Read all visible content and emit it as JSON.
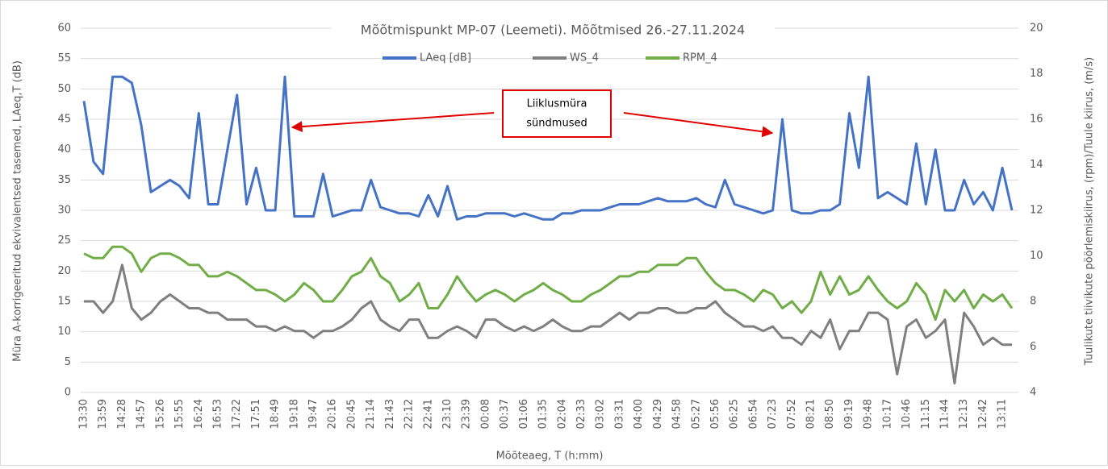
{
  "chart_data": {
    "type": "line",
    "title": "Mõõtmispunkt MP-07 (Leemeti). Mõõtmised 26.-27.11.2024",
    "x_label": "Mõõteaeg, T (h:mm)",
    "y_label": "Müra A-korrigeeritud ekvivalentsed tasemed, LAeq,T (dB)",
    "y2_label": "Tuulikute tiivikute pöörlemiskiirus, (rpm)/Tuule kiirus, (m/s)",
    "annotation": {
      "lines": [
        "Liiklusmüra",
        "sündmused"
      ]
    },
    "legend": "top",
    "grid": true,
    "ylim": [
      0,
      60
    ],
    "yticks": [
      0,
      5,
      10,
      15,
      20,
      25,
      30,
      35,
      40,
      45,
      50,
      55,
      60
    ],
    "y2lim": [
      4,
      20
    ],
    "y2ticks": [
      4,
      6,
      8,
      10,
      12,
      14,
      16,
      18,
      20
    ],
    "categories": [
      "13:30",
      null,
      "13:59",
      null,
      "14:28",
      null,
      "14:57",
      null,
      "15:26",
      null,
      "15:55",
      null,
      "16:24",
      null,
      "16:53",
      null,
      "17:22",
      null,
      "17:51",
      null,
      "18:49",
      null,
      "19:18",
      null,
      "19:47",
      null,
      "20:16",
      null,
      "20:45",
      null,
      "21:14",
      null,
      "21:43",
      null,
      "22:12",
      null,
      "22:41",
      null,
      "23:10",
      null,
      "23:39",
      null,
      "00:08",
      null,
      "00:37",
      null,
      "01:06",
      null,
      "01:35",
      null,
      "02:04",
      null,
      "02:33",
      null,
      "03:02",
      null,
      "03:31",
      null,
      "04:00",
      null,
      "04:29",
      null,
      "04:58",
      null,
      "05:27",
      null,
      "05:56",
      null,
      "06:25",
      null,
      "06:54",
      null,
      "07:23",
      null,
      "07:52",
      null,
      "08:21",
      null,
      "08:50",
      null,
      "09:19",
      null,
      "09:48",
      null,
      "10:17",
      null,
      "10:46",
      null,
      "11:15",
      null,
      "11:44",
      null,
      "12:13",
      null,
      "12:42",
      null,
      "13:11",
      null
    ],
    "series": [
      {
        "name": "LAeq [dB]",
        "color": "#4472c4",
        "axis": "y",
        "values": [
          48,
          38,
          36,
          52,
          52,
          51,
          44,
          33,
          34,
          35,
          34,
          32,
          46,
          31,
          31,
          40,
          49,
          31,
          37,
          30,
          30,
          52,
          29,
          29,
          29,
          36,
          29,
          29.5,
          30,
          30,
          35,
          30.5,
          30,
          29.5,
          29.5,
          29,
          32.5,
          29,
          34,
          28.5,
          29,
          29,
          29.5,
          29.5,
          29.5,
          29,
          29.5,
          29,
          28.5,
          28.5,
          29.5,
          29.5,
          30,
          30,
          30,
          30.5,
          31,
          31,
          31,
          31.5,
          32,
          31.5,
          31.5,
          31.5,
          32,
          31,
          30.5,
          35,
          31,
          30.5,
          30,
          29.5,
          30,
          45,
          30,
          29.5,
          29.5,
          30,
          30,
          31,
          46,
          37,
          52,
          32,
          33,
          32,
          31,
          41,
          31,
          40,
          30,
          30,
          35,
          31,
          33,
          30,
          37,
          30
        ]
      },
      {
        "name": "WS_4",
        "color": "#7f7f7f",
        "axis": "y2",
        "values": [
          8,
          8,
          7.5,
          8,
          9.6,
          7.7,
          7.2,
          7.5,
          8,
          8.3,
          8,
          7.7,
          7.7,
          7.5,
          7.5,
          7.2,
          7.2,
          7.2,
          6.9,
          6.9,
          6.7,
          6.9,
          6.7,
          6.7,
          6.4,
          6.7,
          6.7,
          6.9,
          7.2,
          7.7,
          8,
          7.2,
          6.9,
          6.7,
          7.2,
          7.2,
          6.4,
          6.4,
          6.7,
          6.9,
          6.7,
          6.4,
          7.2,
          7.2,
          6.9,
          6.7,
          6.9,
          6.7,
          6.9,
          7.2,
          6.9,
          6.7,
          6.7,
          6.9,
          6.9,
          7.2,
          7.5,
          7.2,
          7.5,
          7.5,
          7.7,
          7.7,
          7.5,
          7.5,
          7.7,
          7.7,
          8,
          7.5,
          7.2,
          6.9,
          6.9,
          6.7,
          6.9,
          6.4,
          6.4,
          6.1,
          6.7,
          6.4,
          7.2,
          5.9,
          6.7,
          6.7,
          7.5,
          7.5,
          7.2,
          4.8,
          6.9,
          7.2,
          6.4,
          6.7,
          7.2,
          4.4,
          7.5,
          6.9,
          6.1,
          6.4,
          6.1,
          6.1
        ]
      },
      {
        "name": "RPM_4",
        "color": "#70ad47",
        "axis": "y2",
        "values": [
          10.1,
          9.9,
          9.9,
          10.4,
          10.4,
          10.1,
          9.3,
          9.9,
          10.1,
          10.1,
          9.9,
          9.6,
          9.6,
          9.1,
          9.1,
          9.3,
          9.1,
          8.8,
          8.5,
          8.5,
          8.3,
          8,
          8.3,
          8.8,
          8.5,
          8,
          8,
          8.5,
          9.1,
          9.3,
          9.9,
          9.1,
          8.8,
          8,
          8.3,
          8.8,
          7.7,
          7.7,
          8.3,
          9.1,
          8.5,
          8,
          8.3,
          8.5,
          8.3,
          8,
          8.3,
          8.5,
          8.8,
          8.5,
          8.3,
          8,
          8,
          8.3,
          8.5,
          8.8,
          9.1,
          9.1,
          9.3,
          9.3,
          9.6,
          9.6,
          9.6,
          9.9,
          9.9,
          9.3,
          8.8,
          8.5,
          8.5,
          8.3,
          8,
          8.5,
          8.3,
          7.7,
          8,
          7.5,
          8,
          9.3,
          8.3,
          9.1,
          8.3,
          8.5,
          9.1,
          8.5,
          8,
          7.7,
          8,
          8.8,
          8.3,
          7.2,
          8.5,
          8,
          8.5,
          7.7,
          8.3,
          8,
          8.3,
          7.7
        ]
      }
    ]
  }
}
